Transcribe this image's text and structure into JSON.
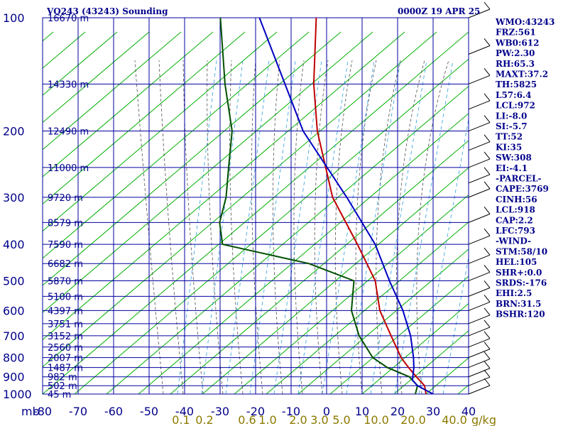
{
  "chart_data": {
    "type": "skew-t",
    "title_left": "VQ243 (43243) Sounding",
    "title_right": "0000Z 19 APR 25",
    "pressure_unit": "mb",
    "pressure_levels": [
      100,
      200,
      300,
      400,
      500,
      600,
      700,
      800,
      900,
      1000
    ],
    "temperature_ticks": [
      -80,
      -70,
      -60,
      -50,
      -40,
      -30,
      -20,
      -10,
      0,
      10,
      20,
      30,
      40
    ],
    "mixing_ratio_unit": "g/kg",
    "mixing_ratio_labels": [
      "0.1",
      "0.2",
      "0.6",
      "1.0",
      "2.0",
      "3.0",
      "5.0",
      "10.0",
      "20.0",
      "40.0"
    ],
    "height_labels": [
      {
        "p": 100,
        "label": "16670 m"
      },
      {
        "p": 150,
        "label": "14330 m"
      },
      {
        "p": 200,
        "label": "12490 m"
      },
      {
        "p": 250,
        "label": "11000 m"
      },
      {
        "p": 300,
        "label": "9720 m"
      },
      {
        "p": 350,
        "label": "8579 m"
      },
      {
        "p": 400,
        "label": "7590 m"
      },
      {
        "p": 450,
        "label": "6682 m"
      },
      {
        "p": 500,
        "label": "5870 m"
      },
      {
        "p": 550,
        "label": "5100 m"
      },
      {
        "p": 600,
        "label": "4397 m"
      },
      {
        "p": 650,
        "label": "3751 m"
      },
      {
        "p": 700,
        "label": "3152 m"
      },
      {
        "p": 750,
        "label": "2560 m"
      },
      {
        "p": 800,
        "label": "2007 m"
      },
      {
        "p": 850,
        "label": "1487 m"
      },
      {
        "p": 900,
        "label": "982 m"
      },
      {
        "p": 950,
        "label": "502 m"
      },
      {
        "p": 1000,
        "label": "45 m"
      }
    ],
    "series": [
      {
        "name": "temperature",
        "color": "#c00000",
        "points": [
          [
            1000,
            28
          ],
          [
            950,
            26
          ],
          [
            900,
            22
          ],
          [
            850,
            18
          ],
          [
            800,
            14
          ],
          [
            700,
            7
          ],
          [
            600,
            -1
          ],
          [
            500,
            -8
          ],
          [
            400,
            -20
          ],
          [
            300,
            -36
          ],
          [
            200,
            -53
          ],
          [
            150,
            -63
          ],
          [
            100,
            -75
          ]
        ]
      },
      {
        "name": "dewpoint",
        "color": "#005000",
        "points": [
          [
            1000,
            25
          ],
          [
            950,
            24
          ],
          [
            900,
            20
          ],
          [
            850,
            12
          ],
          [
            800,
            6
          ],
          [
            700,
            -2
          ],
          [
            600,
            -9
          ],
          [
            500,
            -14
          ],
          [
            450,
            -30
          ],
          [
            400,
            -58
          ],
          [
            350,
            -63
          ],
          [
            300,
            -66
          ],
          [
            250,
            -71
          ],
          [
            200,
            -77
          ],
          [
            150,
            -88
          ],
          [
            100,
            -102
          ]
        ]
      },
      {
        "name": "parcel",
        "color": "#0000c0",
        "points": [
          [
            1000,
            30
          ],
          [
            950,
            24
          ],
          [
            918,
            21.5
          ],
          [
            850,
            19.5
          ],
          [
            800,
            17.5
          ],
          [
            700,
            12.5
          ],
          [
            600,
            5.5
          ],
          [
            500,
            -4
          ],
          [
            400,
            -15
          ],
          [
            300,
            -32
          ],
          [
            200,
            -57
          ],
          [
            100,
            -91
          ]
        ]
      }
    ],
    "indices": [
      "WMO:43243",
      "FRZ:561",
      "WB0:612",
      "PW:2.30",
      "RH:65.3",
      "MAXT:37.2",
      "TH:5825",
      "L57:6.4",
      "LCL:972",
      "LI:-8.0",
      "SI:-5.7",
      "TT:52",
      "KI:35",
      "SW:308",
      "EI:-4.1",
      "-PARCEL-",
      "CAPE:3769",
      "CINH:56",
      "LCL:918",
      "CAP:2.2",
      "LFC:793",
      "-WIND-",
      "STM:58/10",
      "HEL:105",
      "SHR+:0.0",
      "SRDS:-176",
      "EHI:2.5",
      "BRN:31.5",
      "BSHR:120"
    ],
    "colors": {
      "grid": "#0000a0",
      "isotherm": "#0000a0",
      "dry_adiabat": "#00b000",
      "moist_adiabat": "#505050",
      "mixing_ratio": "#2f9fdf",
      "label_olive": "#8c7a00",
      "text": "#00008b"
    }
  }
}
